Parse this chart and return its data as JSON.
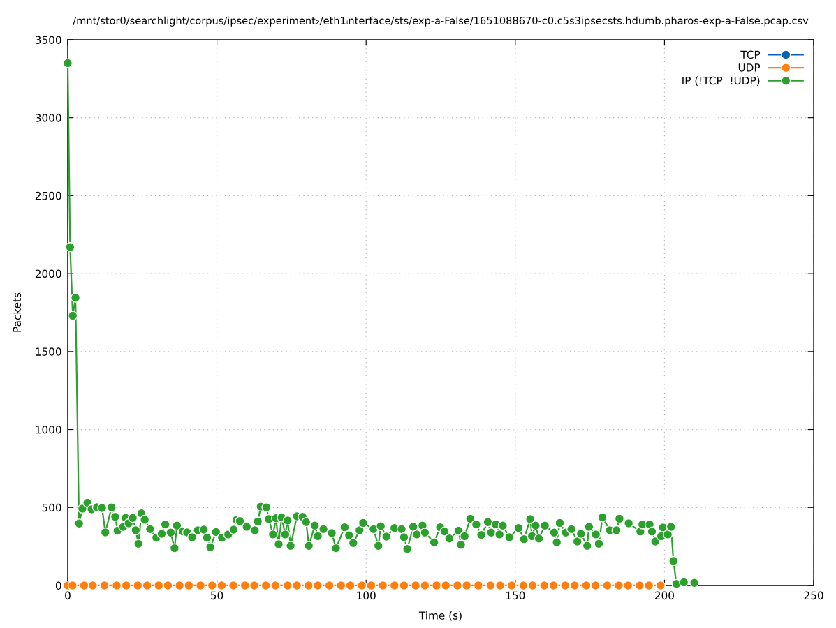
{
  "chart_data": {
    "type": "line",
    "title": "/mnt/stor0/searchlight/corpus/ipsec/experiment₂/eth1ᵢnterface/sts/exp-a-False/1651088670-c0.c5s3ipsecsts.hdumb.pharos-exp-a-False.pcap.csv",
    "xlabel": "Time (s)",
    "ylabel": "Packets",
    "x": [
      0,
      0.8,
      1.7,
      2.6,
      3.8,
      4.9,
      6.6,
      8,
      9.8,
      11.5,
      12.6,
      14.7,
      15.9,
      16.7,
      18.6,
      19.4,
      20.4,
      21.8,
      22.8,
      23.7,
      24.7,
      25.8,
      27.6,
      29.7,
      31.5,
      32.7,
      34.5,
      35.8,
      36.6,
      38.6,
      40,
      41.7,
      43.6,
      45.6,
      46.7,
      47.8,
      49.7,
      51.7,
      53.8,
      55.6,
      56.6,
      57.7,
      60,
      62.7,
      63.7,
      64.7,
      66.6,
      67.4,
      68.8,
      69.8,
      70.7,
      71.7,
      72.9,
      73.7,
      74.7,
      76.8,
      78.7,
      79.9,
      80.8,
      82.8,
      83.8,
      85.7,
      88.5,
      89.9,
      92.8,
      94.3,
      95.7,
      97.8,
      99,
      102.5,
      104.1,
      104.9,
      106.8,
      109.5,
      111.9,
      112.7,
      113.8,
      115.8,
      117,
      118.9,
      119.7,
      122.8,
      124.8,
      126.3,
      127.9,
      131,
      131.8,
      133,
      134.9,
      136.9,
      138.6,
      140.8,
      141.9,
      143.5,
      144.7,
      145.8,
      148,
      151.1,
      152.9,
      155,
      155.6,
      156.8,
      157.9,
      159.9,
      163,
      163.9,
      164.9,
      166.9,
      168.8,
      170.8,
      172,
      174.1,
      174.7,
      177,
      178,
      179.2,
      181.7,
      183.9,
      184.9,
      188,
      191.9,
      192.6,
      195,
      195.8,
      196.9,
      198.9,
      199.5,
      201.1,
      202.2,
      203,
      204,
      206.5,
      210
    ],
    "series": [
      {
        "name": "TCP",
        "color": "#0b62b3",
        "values": [
          null,
          null,
          null,
          null,
          null,
          null,
          null,
          null,
          null,
          null,
          null,
          null,
          null,
          null,
          null,
          null,
          null,
          null,
          null,
          null,
          null,
          null,
          null,
          null,
          null,
          null,
          null,
          null,
          null,
          null,
          null,
          null,
          null,
          null,
          null,
          null,
          null,
          null,
          null,
          null,
          null,
          null,
          null,
          null,
          null,
          null,
          null,
          null,
          null,
          null,
          null,
          null,
          null,
          null,
          null,
          null,
          null,
          null,
          null,
          null,
          null,
          null,
          null,
          null,
          null,
          null,
          null,
          null,
          null,
          null,
          null,
          null,
          null,
          null,
          null,
          null,
          null,
          null,
          null,
          null,
          null,
          null,
          null,
          null,
          null,
          null,
          null,
          null,
          null,
          null,
          null,
          null,
          null,
          null,
          null,
          null,
          null,
          null,
          null,
          null,
          null,
          null,
          null,
          null,
          null,
          null,
          null,
          null,
          null,
          null,
          null,
          null,
          null,
          null,
          null,
          null,
          null,
          null,
          null,
          null,
          null,
          null,
          null,
          null,
          null,
          null,
          null,
          null,
          null,
          null,
          null,
          null,
          null
        ]
      },
      {
        "name": "UDP",
        "color": "#ff7f0e",
        "x": [
          0,
          1.6,
          5.5,
          8.4,
          12.3,
          16.4,
          19.6,
          23.5,
          26.6,
          30.5,
          33.6,
          37.5,
          40.6,
          44.5,
          48.4,
          51.6,
          55.5,
          59.4,
          62.5,
          66.4,
          69.6,
          73.7,
          76.8,
          80.7,
          83.8,
          87.7,
          91.6,
          94.7,
          98.6,
          101.7,
          105.6,
          109.5,
          112.7,
          116.6,
          119.7,
          123.6,
          126.7,
          130.6,
          133.7,
          137.6,
          141.7,
          144.9,
          148.8,
          152.7,
          155.8,
          159.7,
          162.8,
          166.7,
          169.9,
          173.8,
          176.9,
          180.8,
          184.7,
          187.8,
          191.7,
          194.8,
          198.7
        ],
        "values": [
          0,
          0,
          0,
          0,
          0,
          0,
          0,
          0,
          0,
          0,
          0,
          0,
          0,
          0,
          0,
          0,
          0,
          0,
          0,
          0,
          0,
          0,
          0,
          0,
          0,
          0,
          0,
          0,
          0,
          0,
          0,
          0,
          0,
          0,
          0,
          0,
          0,
          0,
          0,
          0,
          0,
          0,
          0,
          0,
          0,
          0,
          0,
          0,
          0,
          0,
          0,
          0,
          0,
          0,
          0,
          0,
          0
        ]
      },
      {
        "name": "IP (!TCP  !UDP)",
        "color": "#2ca02c",
        "values": [
          3350,
          2170,
          1730,
          1845,
          397,
          492,
          530,
          488,
          501,
          497,
          340,
          500,
          440,
          351,
          376,
          433,
          398,
          433,
          354,
          267,
          462,
          421,
          361,
          306,
          331,
          391,
          339,
          239,
          384,
          346,
          340,
          309,
          354,
          358,
          306,
          245,
          342,
          306,
          327,
          358,
          420,
          413,
          376,
          354,
          410,
          505,
          500,
          425,
          327,
          431,
          264,
          436,
          327,
          416,
          254,
          443,
          440,
          406,
          254,
          384,
          316,
          361,
          336,
          239,
          373,
          321,
          272,
          354,
          401,
          361,
          254,
          380,
          313,
          368,
          361,
          309,
          234,
          376,
          327,
          384,
          339,
          276,
          373,
          346,
          301,
          351,
          261,
          316,
          428,
          391,
          324,
          406,
          339,
          391,
          327,
          384,
          309,
          368,
          297,
          425,
          316,
          384,
          301,
          384,
          339,
          276,
          401,
          339,
          361,
          282,
          331,
          254,
          376,
          327,
          267,
          436,
          354,
          354,
          428,
          398,
          346,
          391,
          391,
          346,
          282,
          316,
          372,
          327,
          376,
          157,
          10,
          20,
          17
        ]
      }
    ],
    "xlim": [
      0,
      250
    ],
    "xticks": [
      0,
      50,
      100,
      150,
      200,
      250
    ],
    "ylim": [
      0,
      3500
    ],
    "yticks": [
      0,
      500,
      1000,
      1500,
      2000,
      2500,
      3000,
      3500
    ],
    "grid": true,
    "legend": "top right",
    "marker": "circle",
    "line_style": "solid"
  }
}
